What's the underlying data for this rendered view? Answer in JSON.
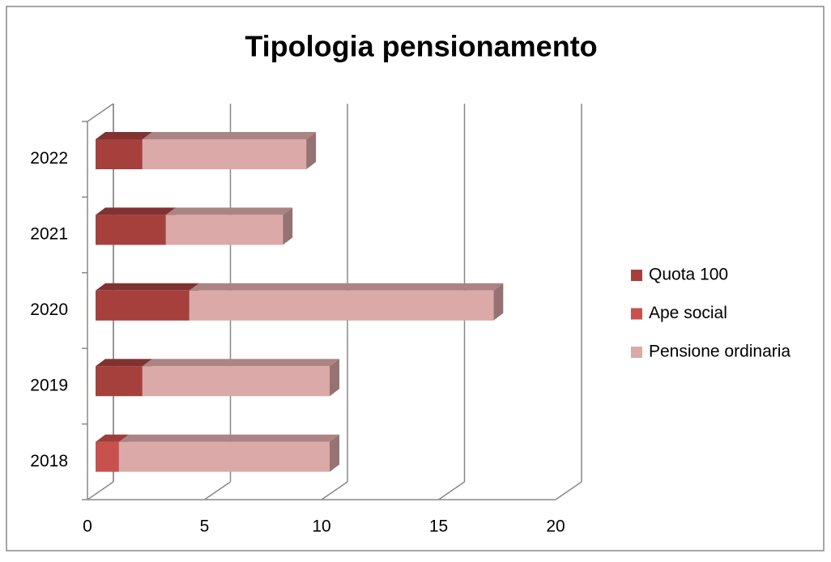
{
  "chart_data": {
    "type": "bar",
    "orientation": "horizontal",
    "stacked": true,
    "title": "Tipologia pensionamento",
    "categories": [
      "2018",
      "2019",
      "2020",
      "2021",
      "2022"
    ],
    "series": [
      {
        "name": "Quota 100",
        "color": "#a5403d",
        "values": [
          0,
          2,
          4,
          3,
          2
        ]
      },
      {
        "name": "Ape social",
        "color": "#c8504d",
        "values": [
          1,
          0,
          0,
          0,
          0
        ]
      },
      {
        "name": "Pensione ordinaria",
        "color": "#dba9a8",
        "values": [
          9,
          8,
          13,
          5,
          7
        ]
      }
    ],
    "xlim": [
      0,
      20
    ],
    "xticks": [
      0,
      5,
      10,
      15,
      20
    ],
    "grid": true,
    "legend": "right"
  }
}
